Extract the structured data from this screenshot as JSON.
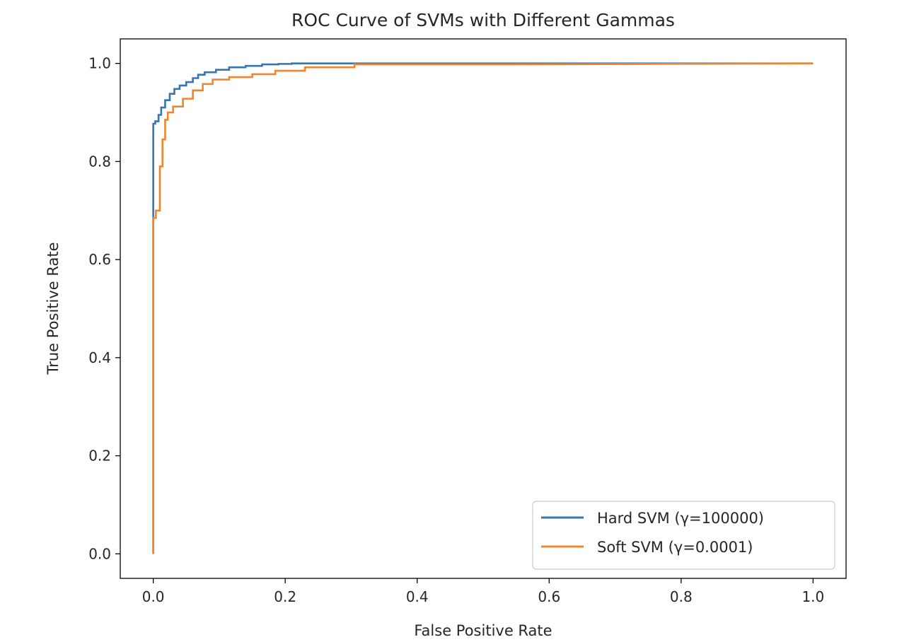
{
  "chart_data": {
    "type": "line",
    "title": "ROC Curve of SVMs with Different Gammas",
    "xlabel": "False Positive Rate",
    "ylabel": "True Positive Rate",
    "xlim": [
      -0.05,
      1.05
    ],
    "ylim": [
      -0.05,
      1.05
    ],
    "xticks": [
      "0.0",
      "0.2",
      "0.4",
      "0.6",
      "0.8",
      "1.0"
    ],
    "yticks": [
      "0.0",
      "0.2",
      "0.4",
      "0.6",
      "0.8",
      "1.0"
    ],
    "grid": false,
    "legend_position": "lower-right",
    "series": [
      {
        "name": "Hard SVM (γ=100000)",
        "color": "#3874b0",
        "x": [
          0,
          0,
          0,
          0.003,
          0.003,
          0.008,
          0.008,
          0.012,
          0.012,
          0.018,
          0.018,
          0.025,
          0.025,
          0.032,
          0.032,
          0.04,
          0.04,
          0.05,
          0.05,
          0.06,
          0.06,
          0.068,
          0.068,
          0.078,
          0.078,
          0.095,
          0.095,
          0.115,
          0.115,
          0.14,
          0.14,
          0.165,
          0.165,
          0.19,
          0.19,
          0.21,
          0.21,
          0.54,
          0.54,
          1.0
        ],
        "y": [
          0,
          0.69,
          0.877,
          0.877,
          0.882,
          0.882,
          0.895,
          0.895,
          0.91,
          0.91,
          0.925,
          0.925,
          0.938,
          0.938,
          0.948,
          0.948,
          0.955,
          0.955,
          0.962,
          0.962,
          0.97,
          0.97,
          0.977,
          0.977,
          0.982,
          0.982,
          0.987,
          0.987,
          0.992,
          0.992,
          0.995,
          0.995,
          0.998,
          0.998,
          0.999,
          0.999,
          1.0,
          1.0,
          1.0,
          1.0
        ]
      },
      {
        "name": "Soft SVM (γ=0.0001)",
        "color": "#f0852d",
        "x": [
          0,
          0,
          0,
          0.004,
          0.004,
          0.01,
          0.01,
          0.014,
          0.014,
          0.018,
          0.018,
          0.022,
          0.022,
          0.03,
          0.03,
          0.045,
          0.045,
          0.06,
          0.06,
          0.075,
          0.075,
          0.09,
          0.09,
          0.115,
          0.115,
          0.15,
          0.15,
          0.185,
          0.185,
          0.23,
          0.23,
          0.305,
          0.305,
          0.54,
          1.0
        ],
        "y": [
          0,
          0.5,
          0.685,
          0.685,
          0.7,
          0.7,
          0.79,
          0.79,
          0.845,
          0.845,
          0.885,
          0.885,
          0.9,
          0.9,
          0.912,
          0.912,
          0.928,
          0.928,
          0.945,
          0.945,
          0.958,
          0.958,
          0.967,
          0.967,
          0.972,
          0.972,
          0.978,
          0.978,
          0.985,
          0.985,
          0.992,
          0.992,
          0.998,
          0.998,
          1.0
        ]
      }
    ]
  }
}
